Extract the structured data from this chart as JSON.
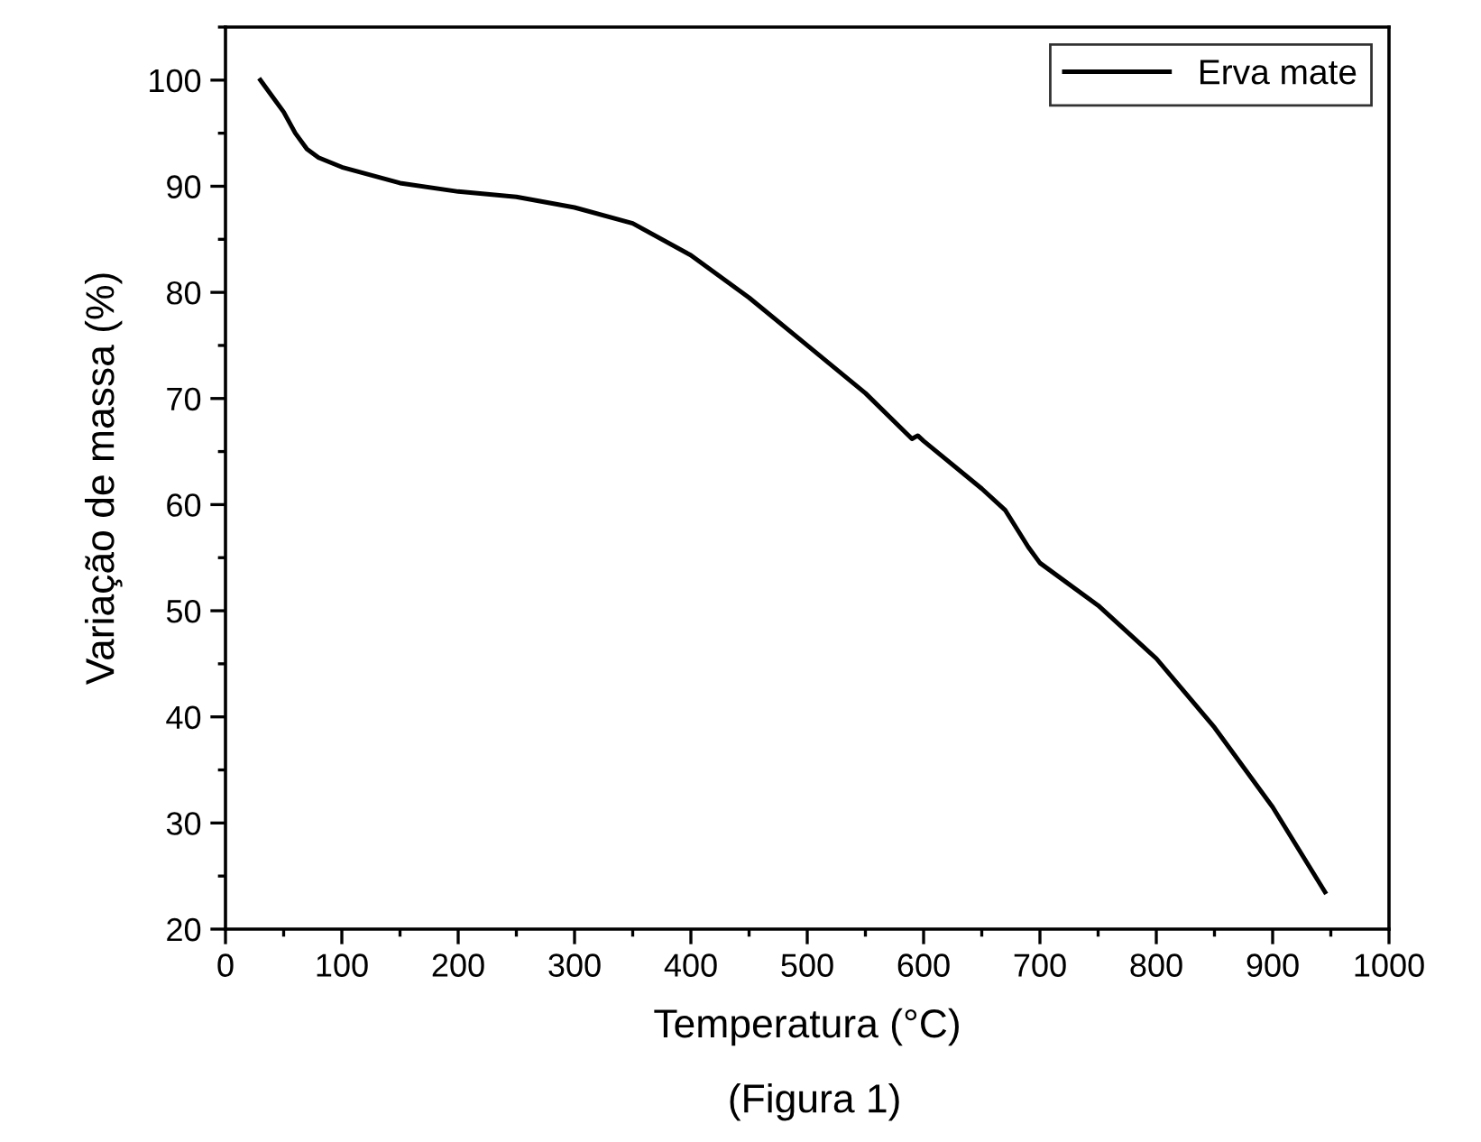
{
  "chart_data": {
    "type": "line",
    "xlabel": "Temperatura (°C)",
    "ylabel": "Variação de massa (%)",
    "xlim": [
      0,
      1000
    ],
    "xticks": [
      0,
      100,
      200,
      300,
      400,
      500,
      600,
      700,
      800,
      900,
      1000
    ],
    "ylim": [
      20,
      105
    ],
    "yticks": [
      20,
      30,
      40,
      50,
      60,
      70,
      80,
      90,
      100
    ],
    "grid": false,
    "legend": "top right",
    "marker": "none",
    "line_style": "solid",
    "annotations": [
      "(Figura 1)"
    ],
    "series": [
      {
        "name": "Erva mate",
        "color": "#000000",
        "x": [
          30,
          40,
          50,
          60,
          70,
          80,
          100,
          150,
          200,
          250,
          300,
          350,
          400,
          450,
          500,
          550,
          590,
          595,
          600,
          650,
          670,
          690,
          700,
          750,
          800,
          850,
          900,
          945
        ],
        "values": [
          100,
          98.5,
          97,
          95,
          93.5,
          92.7,
          91.8,
          90.3,
          89.5,
          89,
          88,
          86.5,
          83.5,
          79.5,
          75,
          70.5,
          66.2,
          66.5,
          66,
          61.5,
          59.5,
          56,
          54.5,
          50.5,
          45.5,
          39,
          31.5,
          23.5
        ]
      }
    ]
  }
}
